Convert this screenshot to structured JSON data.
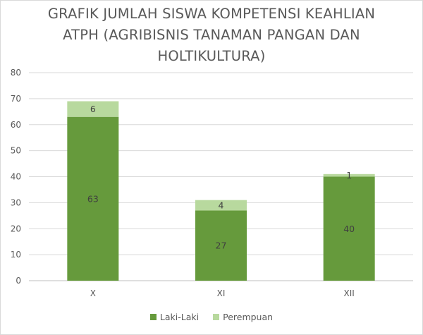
{
  "colors": {
    "laki": "#669a3c",
    "perempuan": "#b8d99e",
    "grid": "#d9d9d9",
    "text": "#595959"
  },
  "chart_data": {
    "type": "bar",
    "stacked": true,
    "title_lines": [
      "GRAFIK JUMLAH SISWA KOMPETENSI KEAHLIAN",
      "ATPH (AGRIBISNIS TANAMAN PANGAN DAN",
      "HOLTIKULTURA)"
    ],
    "categories": [
      "X",
      "XI",
      "XII"
    ],
    "series": [
      {
        "name": "Laki-Laki",
        "values": [
          63,
          27,
          40
        ],
        "color": "#669a3c"
      },
      {
        "name": "Perempuan",
        "values": [
          6,
          4,
          1
        ],
        "color": "#b8d99e"
      }
    ],
    "ylim": [
      0,
      80
    ],
    "yticks": [
      0,
      10,
      20,
      30,
      40,
      50,
      60,
      70,
      80
    ],
    "grid": true,
    "legend_position": "bottom"
  }
}
